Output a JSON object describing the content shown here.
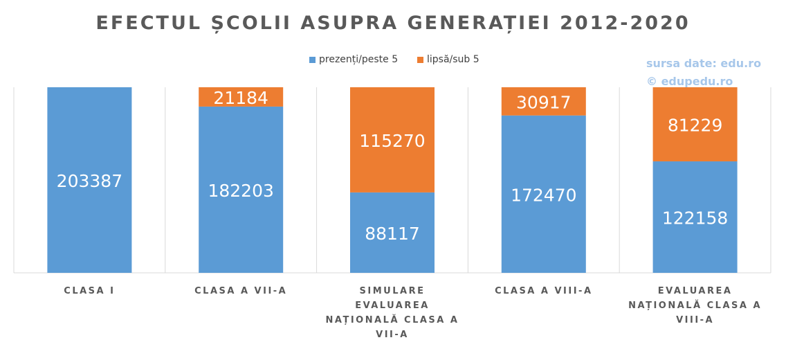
{
  "chart_data": {
    "type": "bar",
    "stacked": true,
    "title": "EFECTUL ȘCOLII ASUPRA GENERAȚIEI 2012-2020",
    "categories": [
      "CLASA I",
      "CLASA A VII-A",
      "SIMULARE EVALUAREA NAȚIONALĂ CLASA A VII-A",
      "CLASA A VIII-A",
      "EVALUAREA NAȚIONALĂ CLASA A VIII-A"
    ],
    "series": [
      {
        "name": "prezenți/peste 5",
        "color": "#5b9bd5",
        "values": [
          203387,
          182203,
          88117,
          172470,
          122158
        ]
      },
      {
        "name": "lipsă/sub 5",
        "color": "#ed7d31",
        "values": [
          0,
          21184,
          115270,
          30917,
          81229
        ]
      }
    ],
    "data_labels": [
      [
        "203387",
        "182203",
        "88117",
        "172470",
        "122158"
      ],
      [
        "",
        "21184",
        "115270",
        "30917",
        "81229"
      ]
    ],
    "ylim": [
      0,
      203387
    ],
    "grid": "vertical-separators",
    "legend_position": "top-center"
  },
  "credits": {
    "line1": "sursa date: edu.ro",
    "line2": "© edupedu.ro"
  }
}
